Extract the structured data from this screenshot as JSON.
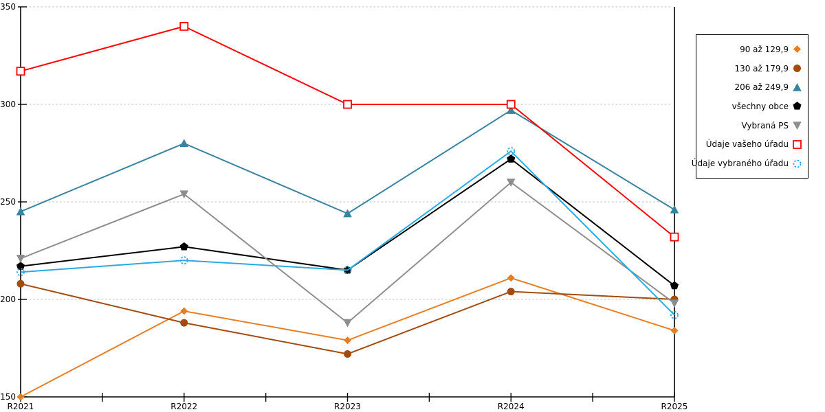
{
  "chart_data": {
    "type": "line",
    "title": "",
    "xlabel": "",
    "ylabel": "",
    "x_categories": [
      "R2021",
      "R2022",
      "R2023",
      "R2024",
      "R2025"
    ],
    "ylim": [
      150,
      350
    ],
    "yticks": [
      350,
      300,
      250,
      200,
      150
    ],
    "grid": "horizontal-dashed",
    "legend_position": "right",
    "series": [
      {
        "name": "90 až 129,9",
        "marker": "diamond",
        "color": "#E87E22",
        "values": [
          150,
          194,
          179,
          211,
          184
        ]
      },
      {
        "name": "130 až 179,9",
        "marker": "circle",
        "color": "#A24B10",
        "values": [
          208,
          188,
          172,
          204,
          200
        ]
      },
      {
        "name": "206 až 249,9",
        "marker": "triangle-up",
        "color": "#3884A0",
        "values": [
          245,
          280,
          244,
          297,
          246
        ]
      },
      {
        "name": "všechny obce",
        "marker": "pentagon",
        "color": "#000000",
        "values": [
          217,
          227,
          215,
          272,
          207
        ]
      },
      {
        "name": "Vybraná PS",
        "marker": "triangle-down",
        "color": "#8E8E8E",
        "values": [
          221,
          254,
          188,
          260,
          198
        ]
      },
      {
        "name": "Údaje vašeho úřadu",
        "marker": "square-open",
        "color": "#FF0000",
        "values": [
          317,
          340,
          300,
          300,
          232
        ]
      },
      {
        "name": "Údaje vybraného úřadu",
        "marker": "circle-open-dashed",
        "color": "#29ABE2",
        "values": [
          214,
          220,
          215,
          276,
          192
        ]
      }
    ]
  },
  "colors": {
    "axis": "#000000",
    "gridline": "#BFBFBF",
    "background": "#FFFFFF",
    "tick_label": "#000000"
  }
}
